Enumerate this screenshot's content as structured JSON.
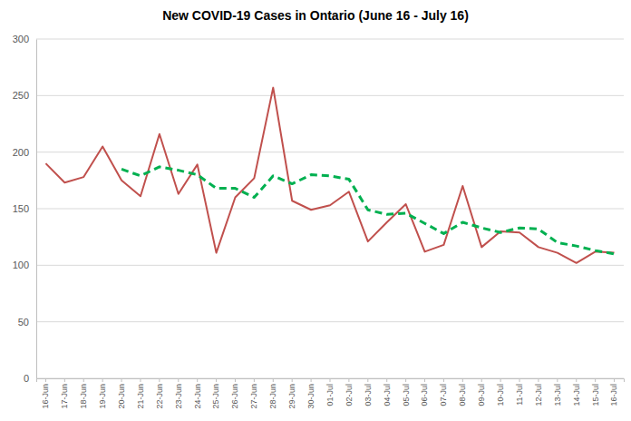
{
  "chart_data": {
    "type": "line",
    "title": "New COVID-19 Cases in Ontario (June 16 - July 16)",
    "categories": [
      "16-Jun",
      "17-Jun",
      "18-Jun",
      "19-Jun",
      "20-Jun",
      "21-Jun",
      "22-Jun",
      "23-Jun",
      "24-Jun",
      "25-Jun",
      "26-Jun",
      "27-Jun",
      "28-Jun",
      "29-Jun",
      "30-Jun",
      "01-Jul",
      "02-Jul",
      "03-Jul",
      "04-Jul",
      "05-Jul",
      "06-Jul",
      "07-Jul",
      "08-Jul",
      "09-Jul",
      "10-Jul",
      "11-Jul",
      "12-Jul",
      "13-Jul",
      "14-Jul",
      "15-Jul",
      "16-Jul"
    ],
    "series": [
      {
        "color": "#c0504d",
        "line_style": "solid",
        "marker": "none",
        "values": [
          190,
          173,
          178,
          205,
          175,
          161,
          216,
          163,
          189,
          111,
          160,
          177,
          257,
          157,
          149,
          153,
          165,
          121,
          138,
          154,
          112,
          118,
          170,
          116,
          130,
          129,
          116,
          111,
          102,
          112,
          111
        ]
      },
      {
        "color": "#00b050",
        "line_style": "dashed",
        "marker": "none",
        "values": [
          null,
          null,
          null,
          null,
          185,
          179,
          187,
          184,
          180,
          168,
          168,
          160,
          179,
          172,
          180,
          179,
          176,
          149,
          145,
          146,
          137,
          128,
          138,
          133,
          129,
          133,
          132,
          120,
          117,
          113,
          110
        ]
      }
    ],
    "ylim": [
      0,
      300
    ],
    "yticks": [
      0,
      50,
      100,
      150,
      200,
      250,
      300
    ],
    "grid": true
  }
}
